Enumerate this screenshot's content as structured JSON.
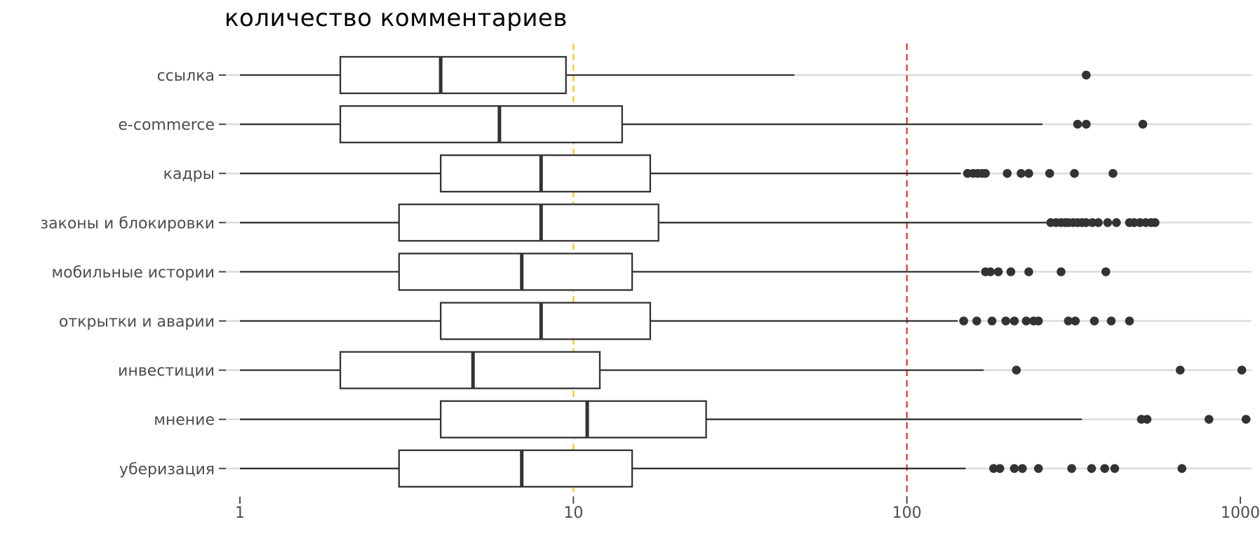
{
  "chart_data": {
    "type": "boxplot",
    "title": "количество комментариев",
    "x_scale": "log10",
    "xlim": [
      1,
      1000
    ],
    "x_ticks": [
      {
        "value": 1,
        "label": "1"
      },
      {
        "value": 10,
        "label": "10"
      },
      {
        "value": 100,
        "label": "100"
      },
      {
        "value": 1000,
        "label": "1000"
      }
    ],
    "reference_lines": [
      {
        "value": 10,
        "color": "#f5c518",
        "style": "dashed"
      },
      {
        "value": 100,
        "color": "#e8321e",
        "style": "dashed"
      }
    ],
    "grid": "horizontal major lines",
    "colors": {
      "box": "#333333",
      "grid": "#dcdcdc",
      "outlier": "#333333"
    },
    "categories": [
      {
        "label": "ссылка",
        "min": 1,
        "q1": 2,
        "median": 4,
        "q3": 9.5,
        "max": 46,
        "outliers": [
          345
        ]
      },
      {
        "label": "e-commerce",
        "min": 1,
        "q1": 2,
        "median": 6,
        "q3": 14,
        "max": 255,
        "outliers": [
          325,
          345,
          510
        ]
      },
      {
        "label": "кадры",
        "min": 1,
        "q1": 4,
        "median": 8,
        "q3": 17,
        "max": 145,
        "outliers": [
          152,
          158,
          163,
          168,
          172,
          200,
          220,
          232,
          268,
          318,
          415
        ]
      },
      {
        "label": "законы и блокировки",
        "min": 1,
        "q1": 3,
        "median": 8,
        "q3": 18,
        "max": 265,
        "outliers": [
          270,
          280,
          290,
          298,
          305,
          315,
          325,
          335,
          345,
          360,
          375,
          400,
          425,
          465,
          480,
          500,
          520,
          540,
          555
        ]
      },
      {
        "label": "мобильные истории",
        "min": 1,
        "q1": 3,
        "median": 7,
        "q3": 15,
        "max": 165,
        "outliers": [
          172,
          178,
          188,
          205,
          232,
          290,
          395
        ]
      },
      {
        "label": "открытки и аварии",
        "min": 1,
        "q1": 4,
        "median": 8,
        "q3": 17,
        "max": 142,
        "outliers": [
          148,
          162,
          180,
          198,
          210,
          228,
          240,
          248,
          305,
          320,
          365,
          410,
          465
        ]
      },
      {
        "label": "инвестиции",
        "min": 1,
        "q1": 2,
        "median": 5,
        "q3": 12,
        "max": 170,
        "outliers": [
          213,
          660,
          1010
        ]
      },
      {
        "label": "мнение",
        "min": 1,
        "q1": 4,
        "median": 11,
        "q3": 25,
        "max": 335,
        "outliers": [
          505,
          525,
          805,
          1040
        ]
      },
      {
        "label": "уберизация",
        "min": 1,
        "q1": 3,
        "median": 7,
        "q3": 15,
        "max": 150,
        "outliers": [
          182,
          190,
          210,
          222,
          248,
          312,
          358,
          392,
          420,
          668
        ]
      }
    ]
  }
}
